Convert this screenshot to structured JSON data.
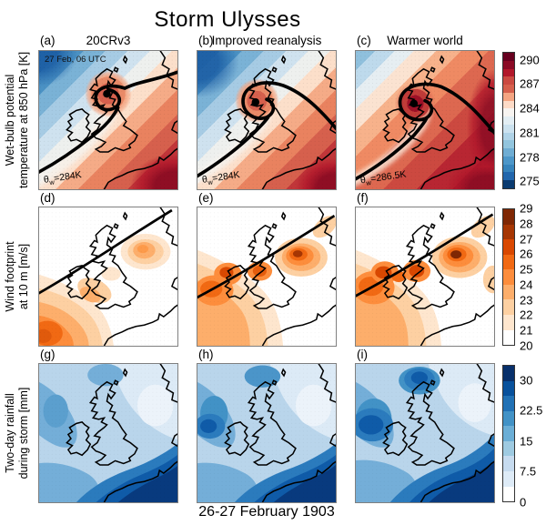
{
  "figure": {
    "title": "Storm Ulysses",
    "caption": "26-27 February 1903",
    "background": "#ffffff"
  },
  "columns": [
    {
      "title": "20CRv3"
    },
    {
      "title": "Improved reanalysis"
    },
    {
      "title": "Warmer world"
    }
  ],
  "rows": [
    {
      "ylabel_line1": "Wet-bulb potential",
      "ylabel_line2": "temperature at 850 hPa [K]",
      "panels": [
        {
          "label": "(a)",
          "datetime": "27 Feb, 06 UTC",
          "theta": {
            "symbol": "θ",
            "sub": "w",
            "value": "=284K"
          }
        },
        {
          "label": "(b)",
          "theta": {
            "symbol": "θ",
            "sub": "w",
            "value": "=284K"
          }
        },
        {
          "label": "(c)",
          "theta": {
            "symbol": "θ",
            "sub": "w",
            "value": "=286.5K"
          }
        }
      ],
      "colorbar": {
        "colors": [
          "#67001f",
          "#8b0a25",
          "#b2182b",
          "#cb4a42",
          "#d6604d",
          "#f4a582",
          "#fddbc7",
          "#f7f4f1",
          "#e3eef4",
          "#cce2ef",
          "#b0d3e7",
          "#92c5de",
          "#6fadd3",
          "#4d97c9",
          "#3784bc",
          "#2166ac",
          "#0a3b70"
        ],
        "ticks": [
          {
            "label": "290",
            "pos": 5.9
          },
          {
            "label": "287",
            "pos": 23.5
          },
          {
            "label": "284",
            "pos": 41.2
          },
          {
            "label": "281",
            "pos": 58.8
          },
          {
            "label": "278",
            "pos": 76.5
          },
          {
            "label": "275",
            "pos": 94.1
          }
        ]
      }
    },
    {
      "ylabel_line1": "Wind footprint",
      "ylabel_line2": "at 10 m [m/s]",
      "panels": [
        {
          "label": "(d)"
        },
        {
          "label": "(e)"
        },
        {
          "label": "(f)"
        }
      ],
      "colorbar": {
        "colors": [
          "#7f2704",
          "#a63603",
          "#d94801",
          "#f16913",
          "#fd8d3c",
          "#fdae6b",
          "#fdd0a2",
          "#fee6ce",
          "#ffffff"
        ],
        "ticks": [
          {
            "label": "29",
            "pos": 0
          },
          {
            "label": "28",
            "pos": 11.1
          },
          {
            "label": "27",
            "pos": 22.2
          },
          {
            "label": "26",
            "pos": 33.3
          },
          {
            "label": "25",
            "pos": 44.4
          },
          {
            "label": "24",
            "pos": 55.6
          },
          {
            "label": "23",
            "pos": 66.7
          },
          {
            "label": "22",
            "pos": 77.8
          },
          {
            "label": "21",
            "pos": 88.9
          },
          {
            "label": "20",
            "pos": 100
          }
        ]
      }
    },
    {
      "ylabel_line1": "Two-day rainfall",
      "ylabel_line2": "during storm [mm]",
      "panels": [
        {
          "label": "(g)"
        },
        {
          "label": "(h)"
        },
        {
          "label": "(i)"
        }
      ],
      "colorbar": {
        "colors": [
          "#08306b",
          "#08519c",
          "#2171b5",
          "#4292c6",
          "#6baed6",
          "#9ecae1",
          "#c6dbef",
          "#deebf7",
          "#ffffff"
        ],
        "ticks": [
          {
            "label": "30",
            "pos": 11.1
          },
          {
            "label": "22.5",
            "pos": 33.3
          },
          {
            "label": "15",
            "pos": 55.6
          },
          {
            "label": "7.5",
            "pos": 77.8
          },
          {
            "label": "0",
            "pos": 100
          }
        ]
      }
    }
  ],
  "chart_data": [
    {
      "type": "heatmap",
      "subtype": "filled-contour map, 3 panels",
      "row_variable": "Wet-bulb potential temperature at 850 hPa [K]",
      "panel_titles": [
        "20CRv3",
        "Improved reanalysis",
        "Warmer world"
      ],
      "panel_labels": [
        "(a)",
        "(b)",
        "(c)"
      ],
      "time_annotation": "27 Feb, 06 UTC",
      "thick_contour_values": [
        "θw=284K",
        "θw=284K",
        "θw=286.5K"
      ],
      "colorbar_ticks": [
        290,
        287,
        284,
        281,
        278,
        275
      ],
      "colorbar_range": [
        274,
        291
      ],
      "units": "K",
      "palette": "red-blue diverging (red = warm, blue = cold)",
      "features": [
        "black storm-centre dot over northern Britain",
        "thick black theta-w contour hooking around the low",
        "warm sector over SE / cold air NW",
        "warmer-world panel mostly red"
      ]
    },
    {
      "type": "heatmap",
      "subtype": "filled-contour map, 3 panels",
      "row_variable": "Wind footprint at 10 m [m/s]",
      "panel_labels": [
        "(d)",
        "(e)",
        "(f)"
      ],
      "colorbar_ticks": [
        29,
        28,
        27,
        26,
        25,
        24,
        23,
        22,
        21,
        20
      ],
      "colorbar_range": [
        20,
        29
      ],
      "units": "m/s",
      "palette": "Oranges (white = 20 m/s, dark brown = 29 m/s)",
      "features": [
        "straight black storm-track line from SW to NE",
        "strongest winds SW of Ireland and over the North Sea",
        "(e) and (f) show stronger maxima than (d)"
      ]
    },
    {
      "type": "heatmap",
      "subtype": "filled-contour map, 3 panels",
      "row_variable": "Two-day rainfall during storm [mm]",
      "panel_labels": [
        "(g)",
        "(h)",
        "(i)"
      ],
      "colorbar_ticks": [
        30,
        22.5,
        15,
        7.5,
        0
      ],
      "colorbar_range": [
        0,
        33.75
      ],
      "units": "mm",
      "palette": "Blues (white = 0 mm, dark navy > 30 mm)",
      "features": [
        "heaviest rain band along the English Channel / continental coast",
        "driest area over eastern England / North Sea",
        "(i) wettest west of Ireland"
      ]
    }
  ]
}
